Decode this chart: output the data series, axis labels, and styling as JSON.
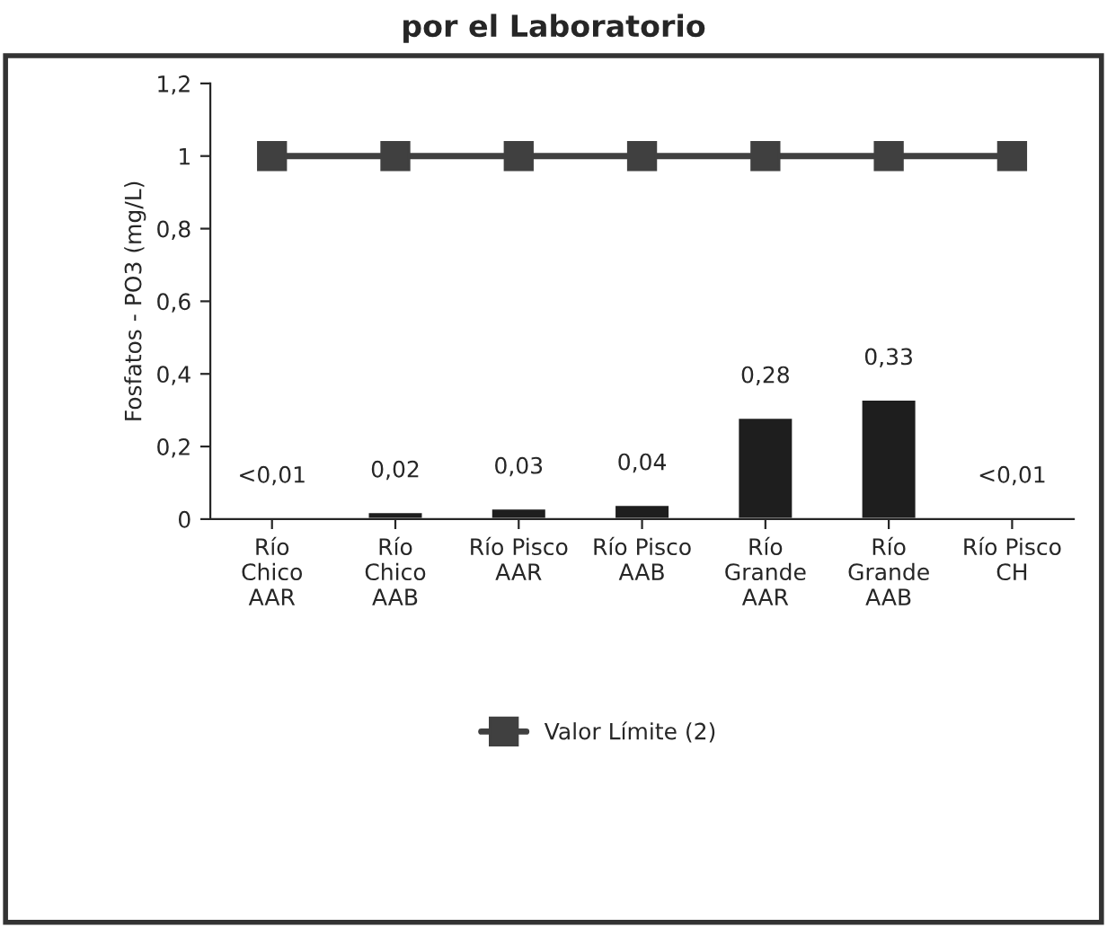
{
  "chart_data": {
    "type": "bar",
    "title": "por el Laboratorio",
    "ylabel": "Fosfatos - PO3 (mg/L)",
    "categories": [
      "Río\nChico\nAAR",
      "Río\nChico\nAAB",
      "Río Pisco\nAAR",
      "Río Pisco\nAAB",
      "Río\nGrande\nAAR",
      "Río\nGrande\nAAB",
      "Río Pisco\nCH"
    ],
    "series": [
      {
        "color": "#1e1e1e",
        "values": [
          0.005,
          0.02,
          0.03,
          0.04,
          0.28,
          0.33,
          0.005
        ],
        "value_labels": [
          "<0,01",
          "0,02",
          "0,03",
          "0,04",
          "0,28",
          "0,33",
          "<0,01"
        ]
      },
      {
        "type": "line",
        "name": "Valor Límite (2)",
        "color": "#404040",
        "marker": "square",
        "values": [
          1,
          1,
          1,
          1,
          1,
          1,
          1
        ]
      }
    ],
    "ylim": [
      0,
      1.2
    ],
    "yticks": [
      {
        "value": 0,
        "label": "0"
      },
      {
        "value": 0.2,
        "label": "0,2"
      },
      {
        "value": 0.4,
        "label": "0,4"
      },
      {
        "value": 0.6,
        "label": "0,6"
      },
      {
        "value": 0.8,
        "label": "0,8"
      },
      {
        "value": 1,
        "label": "1"
      },
      {
        "value": 1.2,
        "label": "1,2"
      }
    ],
    "grid": false,
    "legend": "bottom"
  }
}
